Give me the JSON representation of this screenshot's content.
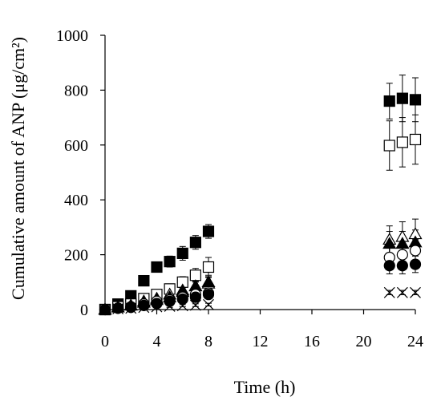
{
  "chart_data": {
    "type": "scatter",
    "xlabel": "Time (h)",
    "ylabel": "Cumulative amount of ANP (μg/cm²)",
    "xlim": [
      0,
      24
    ],
    "ylim": [
      0,
      1000
    ],
    "xticks": [
      0,
      4,
      8,
      12,
      16,
      20,
      24
    ],
    "yticks": [
      0,
      200,
      400,
      600,
      800,
      1000
    ],
    "grid": false,
    "legend": "none",
    "x": [
      0,
      1,
      2,
      3,
      4,
      5,
      6,
      7,
      8,
      22,
      23,
      24
    ],
    "series": [
      {
        "marker": "square-filled",
        "values": [
          0,
          20,
          50,
          105,
          155,
          175,
          205,
          245,
          285,
          760,
          770,
          765
        ],
        "errors": [
          0,
          5,
          8,
          15,
          15,
          20,
          25,
          25,
          25,
          65,
          85,
          80
        ]
      },
      {
        "marker": "square-open",
        "values": [
          0,
          10,
          20,
          40,
          55,
          75,
          100,
          125,
          155,
          598,
          610,
          620
        ],
        "errors": [
          0,
          4,
          6,
          10,
          10,
          15,
          20,
          25,
          35,
          90,
          90,
          90
        ]
      },
      {
        "marker": "triangle-open",
        "values": [
          0,
          8,
          15,
          30,
          40,
          55,
          70,
          85,
          95,
          255,
          265,
          275
        ],
        "errors": [
          0,
          3,
          5,
          8,
          10,
          12,
          15,
          18,
          22,
          50,
          55,
          55
        ]
      },
      {
        "marker": "triangle-filled",
        "values": [
          0,
          8,
          15,
          25,
          35,
          45,
          65,
          85,
          100,
          240,
          240,
          245
        ],
        "errors": [
          0,
          3,
          5,
          8,
          10,
          12,
          15,
          20,
          25,
          45,
          45,
          45
        ]
      },
      {
        "marker": "circle-open",
        "values": [
          0,
          5,
          10,
          20,
          30,
          35,
          45,
          55,
          60,
          190,
          200,
          215
        ],
        "errors": [
          0,
          3,
          4,
          6,
          8,
          10,
          12,
          15,
          18,
          40,
          40,
          40
        ]
      },
      {
        "marker": "circle-filled",
        "values": [
          0,
          5,
          8,
          15,
          22,
          30,
          38,
          45,
          55,
          160,
          160,
          165
        ],
        "errors": [
          0,
          3,
          4,
          6,
          8,
          10,
          12,
          12,
          15,
          30,
          30,
          30
        ]
      },
      {
        "marker": "cross",
        "values": [
          0,
          3,
          5,
          8,
          10,
          12,
          14,
          16,
          18,
          62,
          62,
          62
        ],
        "errors": [
          0,
          2,
          2,
          3,
          3,
          4,
          4,
          5,
          5,
          8,
          8,
          8
        ]
      }
    ]
  }
}
